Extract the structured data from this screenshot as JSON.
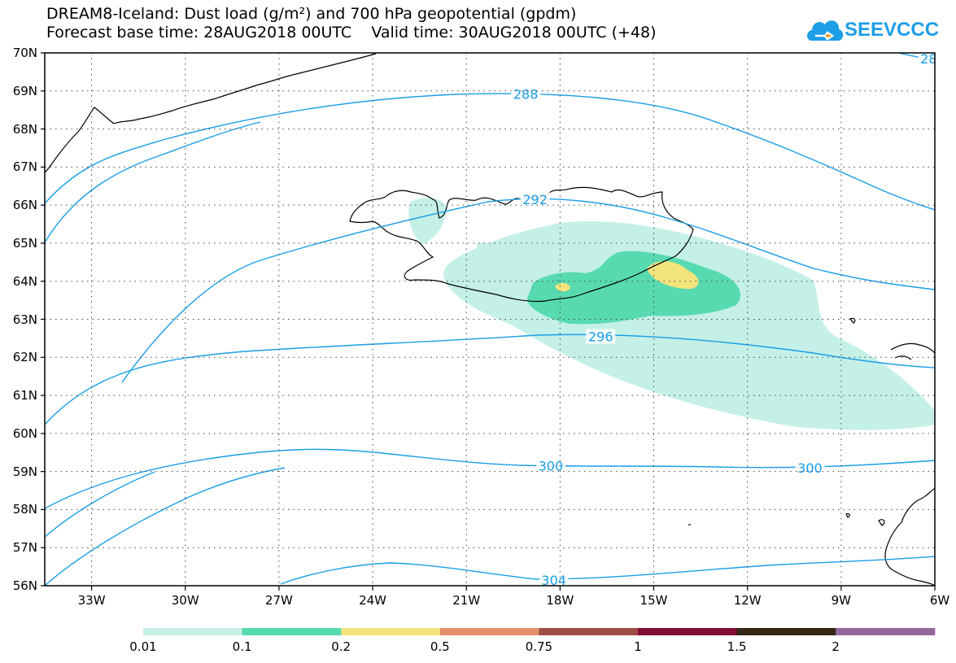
{
  "title": {
    "line1": "DREAM8-Iceland: Dust load (g/m²) and 700 hPa geopotential (gpdm)",
    "line2": "Forecast base time: 28AUG2018 00UTC    Valid time: 30AUG2018 00UTC (+48)"
  },
  "logo": {
    "text": "SEEVCCC",
    "icon": "cloud-logo-icon",
    "color": "#1d9ee6"
  },
  "map_data": {
    "lat_range": [
      56,
      70
    ],
    "lon_range": [
      -34.5,
      -6
    ],
    "lat_labels": [
      "70N",
      "69N",
      "68N",
      "67N",
      "66N",
      "65N",
      "64N",
      "63N",
      "62N",
      "61N",
      "60N",
      "59N",
      "58N",
      "57N",
      "56N"
    ],
    "lon_labels": [
      "33W",
      "30W",
      "27W",
      "24W",
      "21W",
      "18W",
      "15W",
      "12W",
      "9W",
      "6W"
    ],
    "contour_color": "#1a9ee6",
    "contour_labels": [
      {
        "text": "288",
        "lon": -19.1,
        "lat": 68.92
      },
      {
        "text": "292",
        "lon": -18.8,
        "lat": 66.15
      },
      {
        "text": "296",
        "lon": -16.7,
        "lat": 62.55
      },
      {
        "text": "300",
        "lon": -18.3,
        "lat": 59.15
      },
      {
        "text": "300",
        "lon": -10.0,
        "lat": 59.1
      },
      {
        "text": "304",
        "lon": -18.2,
        "lat": 56.15
      },
      {
        "text": "28",
        "lon": -6.2,
        "lat": 69.85
      }
    ]
  },
  "legend": {
    "colors": [
      "#c4f0e8",
      "#58dab0",
      "#f4e47c",
      "#e4906c",
      "#a04e45",
      "#820e34",
      "#362616",
      "#94689c"
    ],
    "labels": [
      "0.01",
      "0.1",
      "0.2",
      "0.5",
      "0.75",
      "1",
      "1.5",
      "2"
    ]
  }
}
